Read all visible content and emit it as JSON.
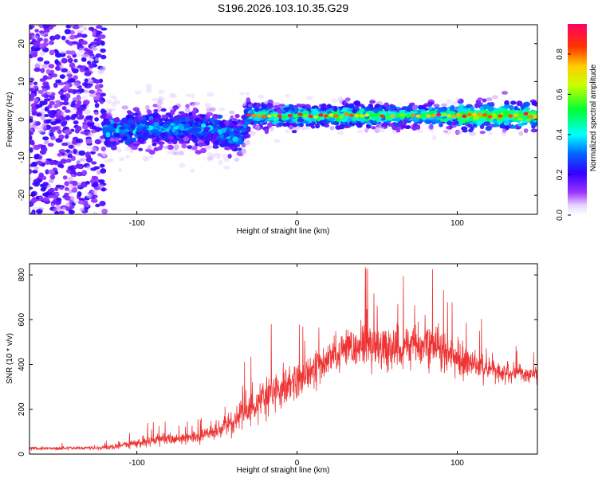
{
  "title": "S196.2026.103.10.35.G29",
  "colors": {
    "snr_line": "#ee3333",
    "axis": "#000000",
    "background": "#ffffff"
  },
  "chart_data": [
    {
      "type": "heatmap",
      "name": "spectrogram",
      "xlabel": "Height of straight line (km)",
      "ylabel": "Frequency (Hz)",
      "xlim": [
        -167,
        150
      ],
      "ylim": [
        -25,
        25
      ],
      "xticks": [
        -100,
        0,
        100
      ],
      "xtick_labels": [
        "-100",
        "0",
        "100"
      ],
      "yticks": [
        -20,
        -10,
        0,
        10,
        20
      ],
      "ytick_labels": [
        "-20",
        "-10",
        "0",
        "10",
        "20"
      ],
      "colorbar": {
        "label": "Normalized spectral amplitude",
        "range": [
          0,
          0.95
        ],
        "ticks": [
          0,
          0.2,
          0.4,
          0.6,
          0.8
        ],
        "tick_labels": [
          "0.0",
          "0.2",
          "0.4",
          "0.6",
          "0.8"
        ]
      },
      "ridge": {
        "description_points_km": [
          -120,
          -80,
          -50,
          -35,
          -30,
          0,
          50,
          100,
          150
        ],
        "frequency_hz": [
          -3,
          -2,
          -3,
          -5,
          1,
          1,
          1,
          1,
          1
        ]
      }
    },
    {
      "type": "line",
      "name": "snr",
      "xlabel": "Height of straight line (km)",
      "ylabel": "SNR (10 * v/v)",
      "xlim": [
        -167,
        150
      ],
      "ylim": [
        0,
        850
      ],
      "xticks": [
        -100,
        0,
        100
      ],
      "xtick_labels": [
        "-100",
        "0",
        "100"
      ],
      "yticks": [
        0,
        200,
        400,
        600,
        800
      ],
      "ytick_labels": [
        "0",
        "200",
        "400",
        "600",
        "800"
      ],
      "envelope": {
        "x": [
          -167,
          -120,
          -100,
          -80,
          -60,
          -50,
          -40,
          -30,
          -20,
          -10,
          0,
          10,
          20,
          30,
          40,
          50,
          60,
          70,
          80,
          90,
          100,
          110,
          120,
          130,
          140,
          150
        ],
        "mean": [
          25,
          28,
          50,
          70,
          80,
          100,
          150,
          200,
          250,
          300,
          320,
          380,
          420,
          470,
          490,
          480,
          470,
          480,
          490,
          460,
          430,
          400,
          380,
          370,
          360,
          350
        ],
        "spread": [
          12,
          15,
          35,
          45,
          45,
          55,
          90,
          110,
          120,
          140,
          130,
          120,
          120,
          140,
          150,
          150,
          150,
          160,
          170,
          160,
          130,
          100,
          80,
          70,
          60,
          60
        ]
      }
    }
  ]
}
